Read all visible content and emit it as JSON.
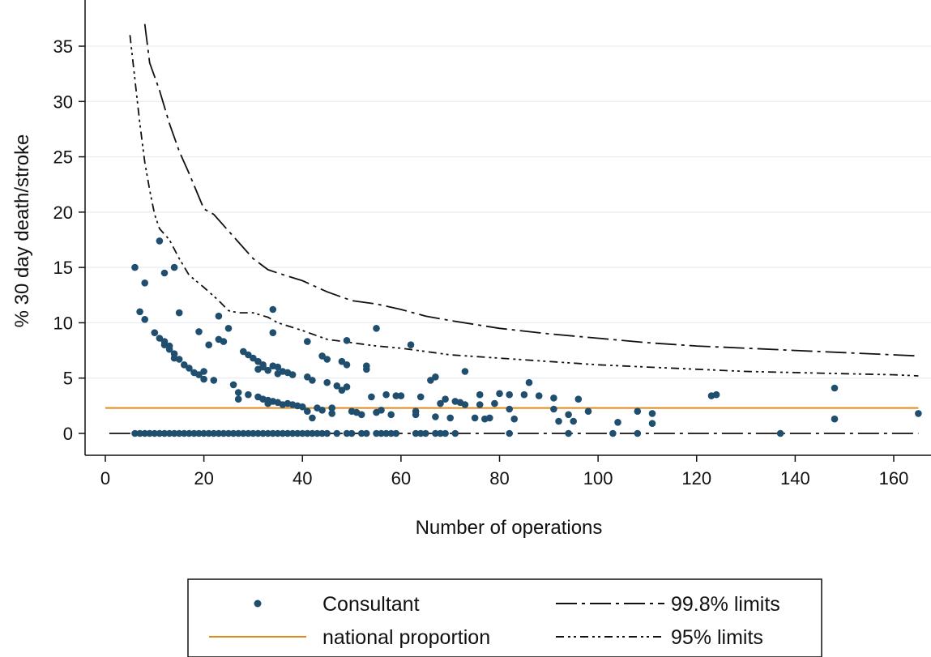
{
  "chart_data": {
    "type": "scatter",
    "xlabel": "Number of operations",
    "ylabel": "% 30 day death/stroke",
    "xlim": [
      0,
      165
    ],
    "ylim": [
      0,
      37
    ],
    "xticks": [
      0,
      20,
      40,
      60,
      80,
      100,
      120,
      140,
      160
    ],
    "yticks": [
      0,
      5,
      10,
      15,
      20,
      25,
      30,
      35
    ],
    "grid": "horizontal",
    "legend_position": "bottom",
    "colors": {
      "points": "#1f4e6e",
      "national": "#e08a1e",
      "limits": "#111111",
      "grid": "#e6ecf2"
    },
    "series": [
      {
        "name": "Consultant",
        "type": "scatter",
        "points": [
          [
            6,
            15.0
          ],
          [
            7,
            11.0
          ],
          [
            8,
            13.6
          ],
          [
            8,
            10.3
          ],
          [
            10,
            9.1
          ],
          [
            11,
            17.4
          ],
          [
            11,
            8.6
          ],
          [
            12,
            14.5
          ],
          [
            12,
            8.3
          ],
          [
            12,
            8.0
          ],
          [
            13,
            7.9
          ],
          [
            13,
            7.6
          ],
          [
            14,
            15.0
          ],
          [
            14,
            7.2
          ],
          [
            14,
            6.8
          ],
          [
            15,
            10.9
          ],
          [
            15,
            6.7
          ],
          [
            16,
            6.2
          ],
          [
            17,
            5.9
          ],
          [
            18,
            5.5
          ],
          [
            19,
            5.3
          ],
          [
            19,
            9.2
          ],
          [
            20,
            4.9
          ],
          [
            20,
            5.6
          ],
          [
            21,
            8.0
          ],
          [
            22,
            4.8
          ],
          [
            23,
            10.6
          ],
          [
            23,
            8.5
          ],
          [
            24,
            8.3
          ],
          [
            25,
            9.5
          ],
          [
            26,
            4.4
          ],
          [
            27,
            3.7
          ],
          [
            27,
            3.1
          ],
          [
            28,
            7.4
          ],
          [
            29,
            3.5
          ],
          [
            29,
            7.1
          ],
          [
            30,
            6.8
          ],
          [
            31,
            3.3
          ],
          [
            31,
            5.8
          ],
          [
            31,
            6.5
          ],
          [
            32,
            3.1
          ],
          [
            32,
            6.2
          ],
          [
            32,
            6.0
          ],
          [
            33,
            3.0
          ],
          [
            33,
            2.7
          ],
          [
            33,
            5.7
          ],
          [
            34,
            2.9
          ],
          [
            34,
            6.1
          ],
          [
            34,
            9.1
          ],
          [
            34,
            11.2
          ],
          [
            35,
            2.8
          ],
          [
            35,
            5.4
          ],
          [
            35,
            6.0
          ],
          [
            36,
            2.6
          ],
          [
            36,
            5.6
          ],
          [
            37,
            2.7
          ],
          [
            37,
            5.5
          ],
          [
            38,
            2.6
          ],
          [
            38,
            5.3
          ],
          [
            39,
            2.5
          ],
          [
            40,
            2.4
          ],
          [
            41,
            8.3
          ],
          [
            41,
            2.0
          ],
          [
            41,
            5.1
          ],
          [
            42,
            4.8
          ],
          [
            42,
            1.4
          ],
          [
            43,
            2.3
          ],
          [
            44,
            7.0
          ],
          [
            44,
            2.1
          ],
          [
            45,
            4.6
          ],
          [
            45,
            6.7
          ],
          [
            46,
            2.3
          ],
          [
            46,
            1.8
          ],
          [
            47,
            4.3
          ],
          [
            48,
            3.9
          ],
          [
            48,
            6.5
          ],
          [
            49,
            4.2
          ],
          [
            49,
            8.4
          ],
          [
            49,
            6.2
          ],
          [
            50,
            2.0
          ],
          [
            51,
            1.9
          ],
          [
            52,
            1.7
          ],
          [
            53,
            5.8
          ],
          [
            53,
            6.1
          ],
          [
            54,
            3.3
          ],
          [
            55,
            9.5
          ],
          [
            55,
            1.9
          ],
          [
            56,
            2.1
          ],
          [
            57,
            3.5
          ],
          [
            58,
            1.7
          ],
          [
            59,
            3.4
          ],
          [
            60,
            3.4
          ],
          [
            62,
            8.0
          ],
          [
            63,
            1.7
          ],
          [
            63,
            2.0
          ],
          [
            64,
            3.3
          ],
          [
            66,
            4.8
          ],
          [
            67,
            5.1
          ],
          [
            67,
            1.5
          ],
          [
            68,
            2.7
          ],
          [
            69,
            3.1
          ],
          [
            70,
            1.4
          ],
          [
            71,
            2.9
          ],
          [
            72,
            2.8
          ],
          [
            73,
            5.6
          ],
          [
            73,
            2.6
          ],
          [
            75,
            1.4
          ],
          [
            76,
            3.5
          ],
          [
            76,
            2.6
          ],
          [
            77,
            1.3
          ],
          [
            78,
            1.4
          ],
          [
            79,
            2.7
          ],
          [
            80,
            3.6
          ],
          [
            82,
            3.5
          ],
          [
            82,
            2.2
          ],
          [
            83,
            1.3
          ],
          [
            85,
            3.5
          ],
          [
            86,
            4.6
          ],
          [
            88,
            3.4
          ],
          [
            91,
            3.2
          ],
          [
            91,
            2.2
          ],
          [
            92,
            1.1
          ],
          [
            94,
            1.7
          ],
          [
            95,
            1.1
          ],
          [
            96,
            3.1
          ],
          [
            98,
            2.0
          ],
          [
            104,
            1.0
          ],
          [
            108,
            2.0
          ],
          [
            111,
            1.8
          ],
          [
            111,
            0.9
          ],
          [
            123,
            3.4
          ],
          [
            124,
            3.5
          ],
          [
            148,
            4.1
          ],
          [
            148,
            1.3
          ],
          [
            165,
            1.8
          ],
          [
            6,
            0
          ],
          [
            7,
            0
          ],
          [
            8,
            0
          ],
          [
            9,
            0
          ],
          [
            10,
            0
          ],
          [
            11,
            0
          ],
          [
            12,
            0
          ],
          [
            13,
            0
          ],
          [
            14,
            0
          ],
          [
            15,
            0
          ],
          [
            16,
            0
          ],
          [
            17,
            0
          ],
          [
            18,
            0
          ],
          [
            19,
            0
          ],
          [
            20,
            0
          ],
          [
            21,
            0
          ],
          [
            22,
            0
          ],
          [
            23,
            0
          ],
          [
            24,
            0
          ],
          [
            25,
            0
          ],
          [
            26,
            0
          ],
          [
            27,
            0
          ],
          [
            28,
            0
          ],
          [
            29,
            0
          ],
          [
            30,
            0
          ],
          [
            31,
            0
          ],
          [
            32,
            0
          ],
          [
            33,
            0
          ],
          [
            34,
            0
          ],
          [
            35,
            0
          ],
          [
            36,
            0
          ],
          [
            37,
            0
          ],
          [
            38,
            0
          ],
          [
            39,
            0
          ],
          [
            40,
            0
          ],
          [
            41,
            0
          ],
          [
            42,
            0
          ],
          [
            43,
            0
          ],
          [
            44,
            0
          ],
          [
            45,
            0
          ],
          [
            47,
            0
          ],
          [
            49,
            0
          ],
          [
            50,
            0
          ],
          [
            52,
            0
          ],
          [
            53,
            0
          ],
          [
            55,
            0
          ],
          [
            56,
            0
          ],
          [
            57,
            0
          ],
          [
            58,
            0
          ],
          [
            59,
            0
          ],
          [
            63,
            0
          ],
          [
            64,
            0
          ],
          [
            65,
            0
          ],
          [
            67,
            0
          ],
          [
            68,
            0
          ],
          [
            69,
            0
          ],
          [
            71,
            0
          ],
          [
            82,
            0
          ],
          [
            94,
            0
          ],
          [
            103,
            0
          ],
          [
            108,
            0
          ],
          [
            137,
            0
          ]
        ]
      },
      {
        "name": "national proportion",
        "type": "line",
        "points": [
          [
            0,
            2.3
          ],
          [
            165,
            2.3
          ]
        ]
      },
      {
        "name": "99.8% limits",
        "type": "line",
        "points": [
          [
            0.8,
            0
          ],
          [
            165,
            0
          ],
          null,
          [
            8,
            37
          ],
          [
            9,
            33.5
          ],
          [
            11,
            31
          ],
          [
            13,
            28
          ],
          [
            15,
            25.5
          ],
          [
            17,
            23.5
          ],
          [
            20,
            20.3
          ],
          [
            22,
            19.8
          ],
          [
            25,
            18.3
          ],
          [
            28,
            16.8
          ],
          [
            30,
            15.8
          ],
          [
            33,
            14.8
          ],
          [
            35,
            14.5
          ],
          [
            40,
            13.8
          ],
          [
            45,
            12.8
          ],
          [
            50,
            12.0
          ],
          [
            55,
            11.7
          ],
          [
            60,
            11.2
          ],
          [
            65,
            10.6
          ],
          [
            70,
            10.2
          ],
          [
            80,
            9.5
          ],
          [
            90,
            9.0
          ],
          [
            100,
            8.6
          ],
          [
            110,
            8.2
          ],
          [
            120,
            7.9
          ],
          [
            130,
            7.7
          ],
          [
            140,
            7.5
          ],
          [
            150,
            7.3
          ],
          [
            160,
            7.1
          ],
          [
            165,
            7.0
          ]
        ]
      },
      {
        "name": "95% limits",
        "type": "line",
        "points": [
          [
            5,
            36
          ],
          [
            6,
            32
          ],
          [
            7,
            28
          ],
          [
            8,
            24.5
          ],
          [
            9,
            22
          ],
          [
            10,
            19.8
          ],
          [
            11,
            18.5
          ],
          [
            13,
            17.5
          ],
          [
            15,
            15.8
          ],
          [
            17,
            14.3
          ],
          [
            20,
            13.2
          ],
          [
            23,
            12.0
          ],
          [
            25,
            11.1
          ],
          [
            27,
            10.9
          ],
          [
            30,
            10.9
          ],
          [
            33,
            10.5
          ],
          [
            35,
            10.0
          ],
          [
            40,
            9.3
          ],
          [
            45,
            8.5
          ],
          [
            50,
            8.2
          ],
          [
            55,
            7.9
          ],
          [
            60,
            7.7
          ],
          [
            65,
            7.4
          ],
          [
            70,
            7.1
          ],
          [
            80,
            6.8
          ],
          [
            90,
            6.5
          ],
          [
            100,
            6.2
          ],
          [
            110,
            6.0
          ],
          [
            120,
            5.8
          ],
          [
            130,
            5.6
          ],
          [
            140,
            5.5
          ],
          [
            150,
            5.4
          ],
          [
            160,
            5.3
          ],
          [
            165,
            5.2
          ]
        ]
      }
    ]
  },
  "legend": {
    "items": [
      {
        "label": "Consultant",
        "symbol": "dot"
      },
      {
        "label": "99.8% limits",
        "symbol": "longdash-dot"
      },
      {
        "label": "national proportion",
        "symbol": "solid-orange"
      },
      {
        "label": "95% limits",
        "symbol": "dash-dot-dot"
      }
    ]
  }
}
